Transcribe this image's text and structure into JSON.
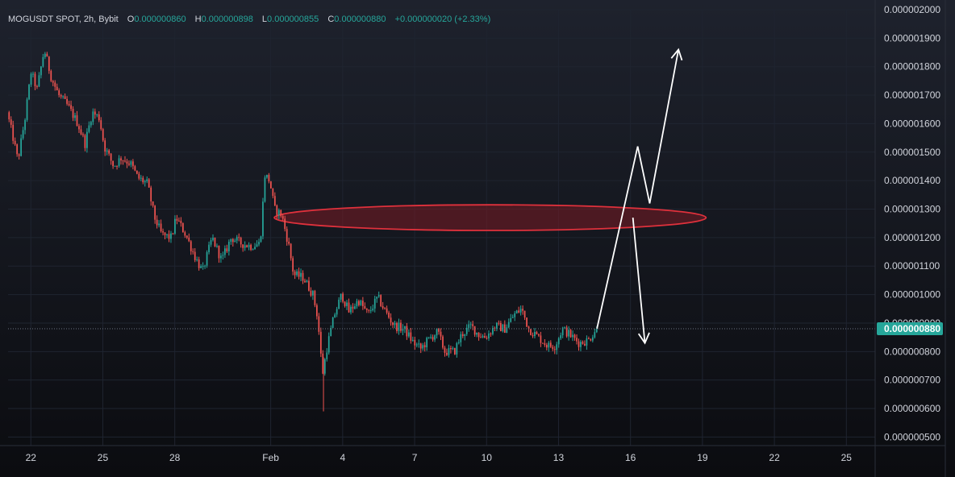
{
  "header": {
    "symbol": "MOGUSDT SPOT, 2h, Bybit",
    "o_label": "O",
    "o_value": "0.000000860",
    "h_label": "H",
    "h_value": "0.000000898",
    "l_label": "L",
    "l_value": "0.000000855",
    "c_label": "C",
    "c_value": "0.000000880",
    "change": "+0.000000020 (+2.33%)"
  },
  "colors": {
    "background": "#131722",
    "up": "#26a69a",
    "down": "#ef5350",
    "grid": "#1f2430",
    "zone_stroke": "#e0313c",
    "zone_fill": "#7a1c24",
    "arrows": "#ffffff",
    "price_tag": "#26a69a"
  },
  "chart_data": {
    "type": "candlestick",
    "title": "MOGUSDT SPOT, 2h, Bybit",
    "x_ticks": [
      {
        "label": "22",
        "day": 22
      },
      {
        "label": "25",
        "day": 25
      },
      {
        "label": "28",
        "day": 28
      },
      {
        "label": "Feb",
        "day": 32
      },
      {
        "label": "4",
        "day": 35
      },
      {
        "label": "7",
        "day": 38
      },
      {
        "label": "10",
        "day": 41
      },
      {
        "label": "13",
        "day": 44
      },
      {
        "label": "16",
        "day": 47
      },
      {
        "label": "19",
        "day": 50
      },
      {
        "label": "22",
        "day": 53
      },
      {
        "label": "25",
        "day": 56
      }
    ],
    "y_ticks": [
      "0.000000500",
      "0.000000600",
      "0.000000700",
      "0.000000800",
      "0.000000900",
      "0.000001000",
      "0.000001100",
      "0.000001200",
      "0.000001300",
      "0.000001400",
      "0.000001500",
      "0.000001600",
      "0.000001700",
      "0.000001800",
      "0.000001900",
      "0.000002000"
    ],
    "ylim": [
      4.7e-07,
      2e-06
    ],
    "xlim": [
      21.05,
      57.2
    ],
    "last_price": 8.8e-07,
    "last_price_label": "0.000000880",
    "price_path": [
      {
        "day": 21.05,
        "price": 1.64e-06
      },
      {
        "day": 21.3,
        "price": 1.55e-06
      },
      {
        "day": 21.5,
        "price": 1.47e-06
      },
      {
        "day": 21.8,
        "price": 1.62e-06
      },
      {
        "day": 22.05,
        "price": 1.78e-06
      },
      {
        "day": 22.3,
        "price": 1.72e-06
      },
      {
        "day": 22.6,
        "price": 1.86e-06
      },
      {
        "day": 22.9,
        "price": 1.76e-06
      },
      {
        "day": 23.2,
        "price": 1.7e-06
      },
      {
        "day": 23.6,
        "price": 1.66e-06
      },
      {
        "day": 24.0,
        "price": 1.6e-06
      },
      {
        "day": 24.3,
        "price": 1.53e-06
      },
      {
        "day": 24.6,
        "price": 1.64e-06
      },
      {
        "day": 24.9,
        "price": 1.62e-06
      },
      {
        "day": 25.1,
        "price": 1.52e-06
      },
      {
        "day": 25.5,
        "price": 1.45e-06
      },
      {
        "day": 25.8,
        "price": 1.48e-06
      },
      {
        "day": 26.2,
        "price": 1.46e-06
      },
      {
        "day": 26.5,
        "price": 1.41e-06
      },
      {
        "day": 26.9,
        "price": 1.39e-06
      },
      {
        "day": 27.2,
        "price": 1.27e-06
      },
      {
        "day": 27.5,
        "price": 1.21e-06
      },
      {
        "day": 27.9,
        "price": 1.2e-06
      },
      {
        "day": 28.1,
        "price": 1.27e-06
      },
      {
        "day": 28.5,
        "price": 1.21e-06
      },
      {
        "day": 28.9,
        "price": 1.13e-06
      },
      {
        "day": 29.2,
        "price": 1.08e-06
      },
      {
        "day": 29.6,
        "price": 1.2e-06
      },
      {
        "day": 30.0,
        "price": 1.12e-06
      },
      {
        "day": 30.4,
        "price": 1.2e-06
      },
      {
        "day": 30.8,
        "price": 1.18e-06
      },
      {
        "day": 31.2,
        "price": 1.17e-06
      },
      {
        "day": 31.6,
        "price": 1.18e-06
      },
      {
        "day": 31.8,
        "price": 1.42e-06
      },
      {
        "day": 32.0,
        "price": 1.4e-06
      },
      {
        "day": 32.2,
        "price": 1.3e-06
      },
      {
        "day": 32.5,
        "price": 1.28e-06
      },
      {
        "day": 32.8,
        "price": 1.17e-06
      },
      {
        "day": 33.0,
        "price": 1.07e-06
      },
      {
        "day": 33.4,
        "price": 1.06e-06
      },
      {
        "day": 33.8,
        "price": 1e-06
      },
      {
        "day": 34.0,
        "price": 9.2e-07
      },
      {
        "day": 34.2,
        "price": 7.2e-07
      },
      {
        "day": 34.4,
        "price": 8.2e-07
      },
      {
        "day": 34.7,
        "price": 9.3e-07
      },
      {
        "day": 35.0,
        "price": 1e-06
      },
      {
        "day": 35.3,
        "price": 9.4e-07
      },
      {
        "day": 35.7,
        "price": 9.8e-07
      },
      {
        "day": 36.1,
        "price": 9.3e-07
      },
      {
        "day": 36.5,
        "price": 9.9e-07
      },
      {
        "day": 36.9,
        "price": 9.3e-07
      },
      {
        "day": 37.2,
        "price": 8.9e-07
      },
      {
        "day": 37.6,
        "price": 8.8e-07
      },
      {
        "day": 38.0,
        "price": 8.3e-07
      },
      {
        "day": 38.3,
        "price": 8.1e-07
      },
      {
        "day": 38.6,
        "price": 8.4e-07
      },
      {
        "day": 39.0,
        "price": 8.7e-07
      },
      {
        "day": 39.3,
        "price": 8e-07
      },
      {
        "day": 39.7,
        "price": 8e-07
      },
      {
        "day": 40.0,
        "price": 8.6e-07
      },
      {
        "day": 40.4,
        "price": 8.9e-07
      },
      {
        "day": 40.7,
        "price": 8.6e-07
      },
      {
        "day": 41.0,
        "price": 8.5e-07
      },
      {
        "day": 41.4,
        "price": 8.9e-07
      },
      {
        "day": 41.8,
        "price": 8.8e-07
      },
      {
        "day": 42.2,
        "price": 9.3e-07
      },
      {
        "day": 42.5,
        "price": 9.5e-07
      },
      {
        "day": 42.8,
        "price": 8.8e-07
      },
      {
        "day": 43.2,
        "price": 8.5e-07
      },
      {
        "day": 43.6,
        "price": 8.2e-07
      },
      {
        "day": 43.9,
        "price": 8.2e-07
      },
      {
        "day": 44.2,
        "price": 8.8e-07
      },
      {
        "day": 44.5,
        "price": 8.6e-07
      },
      {
        "day": 44.9,
        "price": 8.3e-07
      },
      {
        "day": 45.3,
        "price": 8.4e-07
      },
      {
        "day": 45.6,
        "price": 8.8e-07
      }
    ],
    "resistance_zone": {
      "label": "",
      "center_day": 43.15,
      "price_center": 1.27e-06,
      "price_top": 1.32e-06,
      "price_bottom": 1.23e-06,
      "day_start": 32.15,
      "day_end": 50.15
    },
    "projection_up": [
      {
        "day": 45.6,
        "price": 8.8e-07
      },
      {
        "day": 47.3,
        "price": 1.52e-06
      },
      {
        "day": 47.8,
        "price": 1.32e-06
      },
      {
        "day": 49.0,
        "price": 1.86e-06
      }
    ],
    "projection_down": [
      {
        "day": 47.1,
        "price": 1.27e-06
      },
      {
        "day": 47.6,
        "price": 8.3e-07
      }
    ]
  }
}
